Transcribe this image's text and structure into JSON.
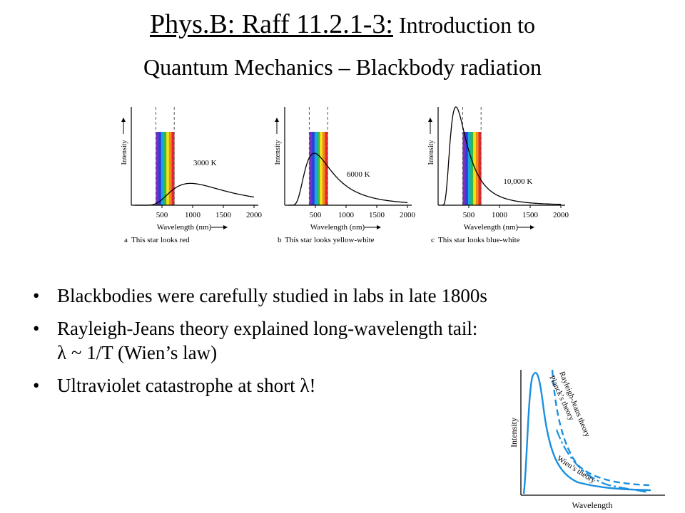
{
  "title": {
    "underlined": "Phys.B: Raff 11.2.1-3",
    "colon": ":",
    "rest": " Introduction to",
    "line2": "Quantum Mechanics – Blackbody radiation"
  },
  "panels": [
    {
      "curve_label": "3000 K",
      "ylabel": "Intensity",
      "xlabel": "Wavelength (nm)",
      "caption_letter": "a",
      "caption": "This star looks red",
      "ticks": [
        "500",
        "1000",
        "1500",
        "2000"
      ]
    },
    {
      "curve_label": "6000 K",
      "ylabel": "Intensity",
      "xlabel": "Wavelength (nm)",
      "caption_letter": "b",
      "caption": "This star looks yellow-white",
      "ticks": [
        "500",
        "1000",
        "1500",
        "2000"
      ]
    },
    {
      "curve_label": "10,000 K",
      "ylabel": "Intensity",
      "xlabel": "Wavelength (nm)",
      "caption_letter": "c",
      "caption": "This star looks blue-white",
      "ticks": [
        "500",
        "1000",
        "1500",
        "2000"
      ]
    }
  ],
  "spectrum_colors": [
    "#7b2fbf",
    "#2a3fd6",
    "#16a9e0",
    "#35b84a",
    "#f2e21b",
    "#f08a1c",
    "#e8262b"
  ],
  "bullets": [
    "Blackbodies were carefully studied in labs in late 1800s",
    "Rayleigh-Jeans theory explained long-wavelength tail:",
    "λ ~ 1/T (Wien’s law)",
    "Ultraviolet catastrophe at short λ!"
  ],
  "theory_fig": {
    "ylabel": "Intensity",
    "xlabel": "Wavelength",
    "labels": [
      "Rayleigh-Jeans theory",
      "Planck’s theory",
      "Wien’s theory"
    ],
    "curve_color": "#1a8fe0"
  }
}
